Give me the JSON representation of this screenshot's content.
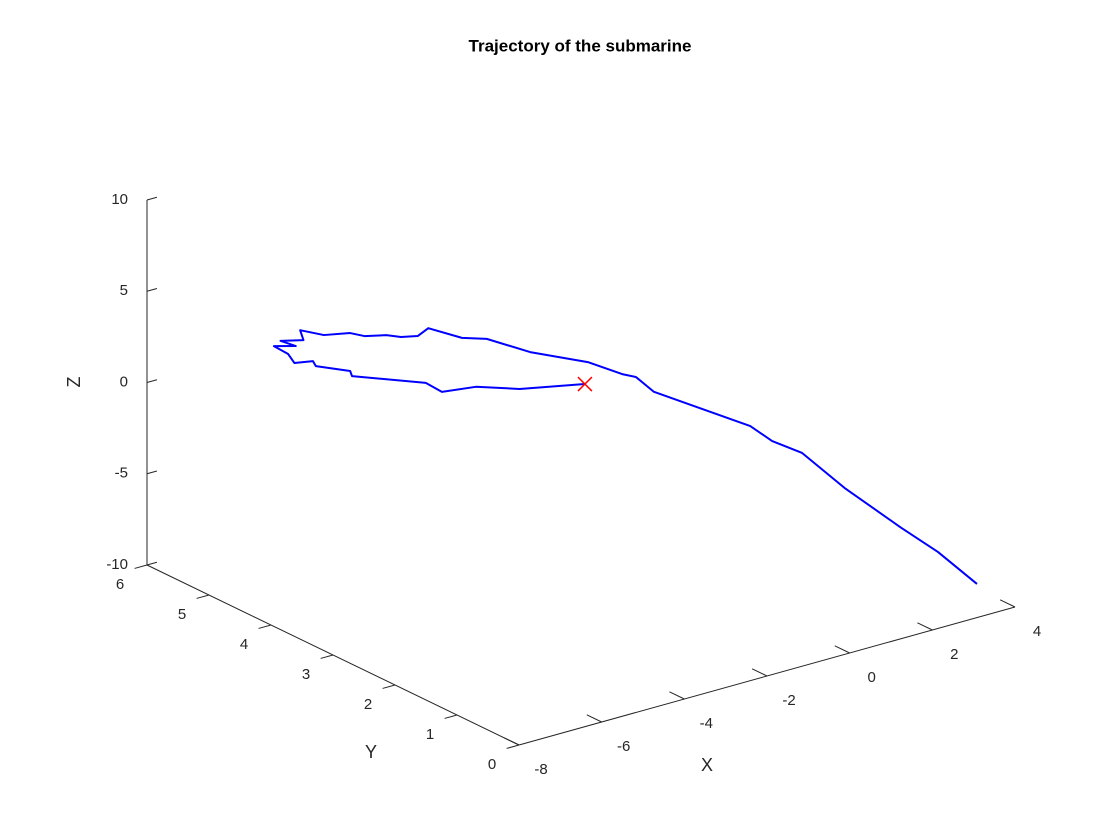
{
  "chart_data": {
    "type": "line3d",
    "title": "Trajectory of the submarine",
    "xlabel": "X",
    "ylabel": "Y",
    "zlabel": "Z",
    "xlim": [
      -8,
      4
    ],
    "ylim": [
      0,
      6
    ],
    "zlim": [
      -10,
      10
    ],
    "xticks": [
      -8,
      -6,
      -4,
      -2,
      0,
      2,
      4
    ],
    "yticks": [
      0,
      1,
      2,
      3,
      4,
      5,
      6
    ],
    "zticks": [
      -10,
      -5,
      0,
      5,
      10
    ],
    "grid": false,
    "series": [
      {
        "color": "#0000ff",
        "x": [
          3.83,
          3.26,
          2.71,
          1.9,
          1.28,
          0.84,
          0.52,
          -0.88,
          -1.15,
          -1.35,
          -1.85,
          -2.69,
          -3.32,
          -3.68,
          -4.18,
          -4.33,
          -4.57,
          -4.79,
          -5.11,
          -5.32,
          -5.7,
          -6.05,
          -6.0,
          -6.33,
          -6.11,
          -6.43,
          -6.22,
          -6.13,
          -5.86,
          -5.82,
          -5.32,
          -5.29,
          -4.21,
          -3.97,
          -3.48,
          -2.84,
          -1.89
        ],
        "y": [
          0.5,
          0.75,
          0.99,
          1.35,
          1.62,
          1.81,
          1.95,
          2.57,
          2.68,
          2.77,
          2.99,
          3.36,
          3.64,
          3.8,
          4.01,
          4.08,
          4.19,
          4.28,
          4.42,
          4.51,
          4.68,
          4.83,
          4.81,
          4.96,
          4.86,
          5.0,
          4.91,
          4.87,
          4.75,
          4.73,
          4.51,
          4.5,
          4.03,
          3.93,
          3.71,
          3.43,
          3.01
        ],
        "z": [
          -9.45,
          -7.75,
          -6.44,
          -4.37,
          -2.51,
          -1.89,
          -1.1,
          0.64,
          1.44,
          1.58,
          2.19,
          2.66,
          3.32,
          3.34,
          3.84,
          3.39,
          3.31,
          3.4,
          3.32,
          3.47,
          3.32,
          3.56,
          3.02,
          2.94,
          2.68,
          2.65,
          2.23,
          1.75,
          1.88,
          1.61,
          1.39,
          1.11,
          0.83,
          0.35,
          0.68,
          0.62,
          0.98
        ]
      },
      {
        "color": "#ff0000",
        "marker": "x",
        "x": [
          -1.89
        ],
        "y": [
          3.01
        ],
        "z": [
          0.98
        ]
      }
    ]
  }
}
